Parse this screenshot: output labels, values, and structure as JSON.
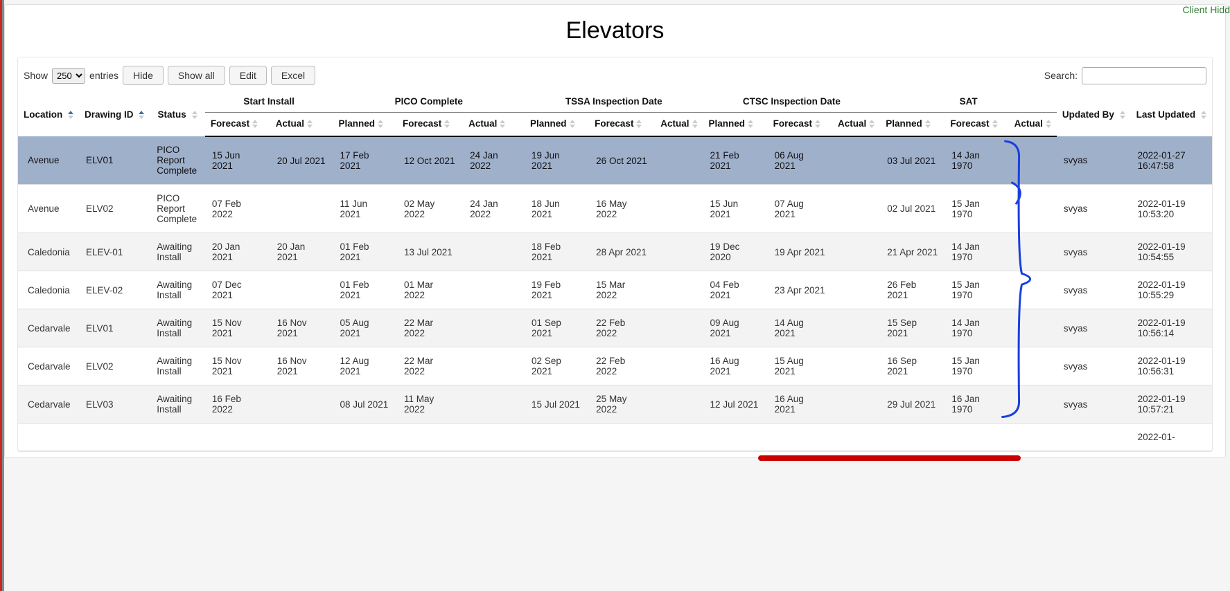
{
  "header": {
    "client_hidden": "Client Hidd",
    "title": "Elevators"
  },
  "controls": {
    "show_label": "Show",
    "entries_label": "entries",
    "entries_value": "250",
    "hide_label": "Hide",
    "showall_label": "Show all",
    "edit_label": "Edit",
    "excel_label": "Excel",
    "search_label": "Search:",
    "search_value": ""
  },
  "columns": {
    "location": "Location",
    "drawing_id": "Drawing ID",
    "status": "Status",
    "start_install": "Start Install",
    "pico_complete": "PICO Complete",
    "tssa": "TSSA Inspection Date",
    "ctsc": "CTSC Inspection Date",
    "sat": "SAT",
    "updated_by": "Updated By",
    "last_updated": "Last Updated",
    "forecast": "Forecast",
    "actual": "Actual",
    "planned": "Planned"
  },
  "rows": [
    {
      "location": "Avenue",
      "drawing_id": "ELV01",
      "status": "PICO Report Complete",
      "si_forecast": "15 Jun 2021",
      "si_actual": "20 Jul 2021",
      "pc_planned": "17 Feb 2021",
      "pc_forecast": "12 Oct 2021",
      "pc_actual": "24 Jan 2022",
      "ts_planned": "19 Jun 2021",
      "ts_forecast": "26 Oct 2021",
      "ts_actual": "",
      "ct_planned": "21 Feb 2021",
      "ct_forecast": "06 Aug 2021",
      "ct_actual": "",
      "sat_planned": "03 Jul 2021",
      "sat_forecast": "14 Jan 1970",
      "sat_actual": "",
      "updated_by": "svyas",
      "last_updated": "2022-01-27 16:47:58",
      "selected": true
    },
    {
      "location": "Avenue",
      "drawing_id": "ELV02",
      "status": "PICO Report Complete",
      "si_forecast": "07 Feb 2022",
      "si_actual": "",
      "pc_planned": "11 Jun 2021",
      "pc_forecast": "02 May 2022",
      "pc_actual": "24 Jan 2022",
      "ts_planned": "18 Jun 2021",
      "ts_forecast": "16 May 2022",
      "ts_actual": "",
      "ct_planned": "15 Jun 2021",
      "ct_forecast": "07 Aug 2021",
      "ct_actual": "",
      "sat_planned": "02 Jul 2021",
      "sat_forecast": "15 Jan 1970",
      "sat_actual": "",
      "updated_by": "svyas",
      "last_updated": "2022-01-19 10:53:20"
    },
    {
      "location": "Caledonia",
      "drawing_id": "ELEV-01",
      "status": "Awaiting Install",
      "si_forecast": "20 Jan 2021",
      "si_actual": "20 Jan 2021",
      "pc_planned": "01 Feb 2021",
      "pc_forecast": "13 Jul 2021",
      "pc_actual": "",
      "ts_planned": "18 Feb 2021",
      "ts_forecast": "28 Apr 2021",
      "ts_actual": "",
      "ct_planned": "19 Dec 2020",
      "ct_forecast": "19 Apr 2021",
      "ct_actual": "",
      "sat_planned": "21 Apr 2021",
      "sat_forecast": "14 Jan 1970",
      "sat_actual": "",
      "updated_by": "svyas",
      "last_updated": "2022-01-19 10:54:55"
    },
    {
      "location": "Caledonia",
      "drawing_id": "ELEV-02",
      "status": "Awaiting Install",
      "si_forecast": "07 Dec 2021",
      "si_actual": "",
      "pc_planned": "01 Feb 2021",
      "pc_forecast": "01 Mar 2022",
      "pc_actual": "",
      "ts_planned": "19 Feb 2021",
      "ts_forecast": "15 Mar 2022",
      "ts_actual": "",
      "ct_planned": "04 Feb 2021",
      "ct_forecast": "23 Apr 2021",
      "ct_actual": "",
      "sat_planned": "26 Feb 2021",
      "sat_forecast": "15 Jan 1970",
      "sat_actual": "",
      "updated_by": "svyas",
      "last_updated": "2022-01-19 10:55:29"
    },
    {
      "location": "Cedarvale",
      "drawing_id": "ELV01",
      "status": "Awaiting Install",
      "si_forecast": "15 Nov 2021",
      "si_actual": "16 Nov 2021",
      "pc_planned": "05 Aug 2021",
      "pc_forecast": "22 Mar 2022",
      "pc_actual": "",
      "ts_planned": "01 Sep 2021",
      "ts_forecast": "22 Feb 2022",
      "ts_actual": "",
      "ct_planned": "09 Aug 2021",
      "ct_forecast": "14 Aug 2021",
      "ct_actual": "",
      "sat_planned": "15 Sep 2021",
      "sat_forecast": "14 Jan 1970",
      "sat_actual": "",
      "updated_by": "svyas",
      "last_updated": "2022-01-19 10:56:14"
    },
    {
      "location": "Cedarvale",
      "drawing_id": "ELV02",
      "status": "Awaiting Install",
      "si_forecast": "15 Nov 2021",
      "si_actual": "16 Nov 2021",
      "pc_planned": "12 Aug 2021",
      "pc_forecast": "22 Mar 2022",
      "pc_actual": "",
      "ts_planned": "02 Sep 2021",
      "ts_forecast": "22 Feb 2022",
      "ts_actual": "",
      "ct_planned": "16 Aug 2021",
      "ct_forecast": "15 Aug 2021",
      "ct_actual": "",
      "sat_planned": "16 Sep 2021",
      "sat_forecast": "15 Jan 1970",
      "sat_actual": "",
      "updated_by": "svyas",
      "last_updated": "2022-01-19 10:56:31"
    },
    {
      "location": "Cedarvale",
      "drawing_id": "ELV03",
      "status": "Awaiting Install",
      "si_forecast": "16 Feb 2022",
      "si_actual": "",
      "pc_planned": "08 Jul 2021",
      "pc_forecast": "11 May 2022",
      "pc_actual": "",
      "ts_planned": "15 Jul 2021",
      "ts_forecast": "25 May 2022",
      "ts_actual": "",
      "ct_planned": "12 Jul 2021",
      "ct_forecast": "16 Aug 2021",
      "ct_actual": "",
      "sat_planned": "29 Jul 2021",
      "sat_forecast": "16 Jan 1970",
      "sat_actual": "",
      "updated_by": "svyas",
      "last_updated": "2022-01-19 10:57:21"
    },
    {
      "location": "",
      "drawing_id": "",
      "status": "",
      "si_forecast": "",
      "si_actual": "",
      "pc_planned": "",
      "pc_forecast": "",
      "pc_actual": "",
      "ts_planned": "",
      "ts_forecast": "",
      "ts_actual": "",
      "ct_planned": "",
      "ct_forecast": "",
      "ct_actual": "",
      "sat_planned": "",
      "sat_forecast": "",
      "sat_actual": "",
      "updated_by": "",
      "last_updated": "2022-01-"
    }
  ],
  "colors": {
    "selected_row": "#9fb0cb",
    "odd_row": "#f3f3f4",
    "annotation_blue": "#1a3fe0",
    "annotation_red": "#cc0000",
    "client_green": "#2e7d32"
  }
}
